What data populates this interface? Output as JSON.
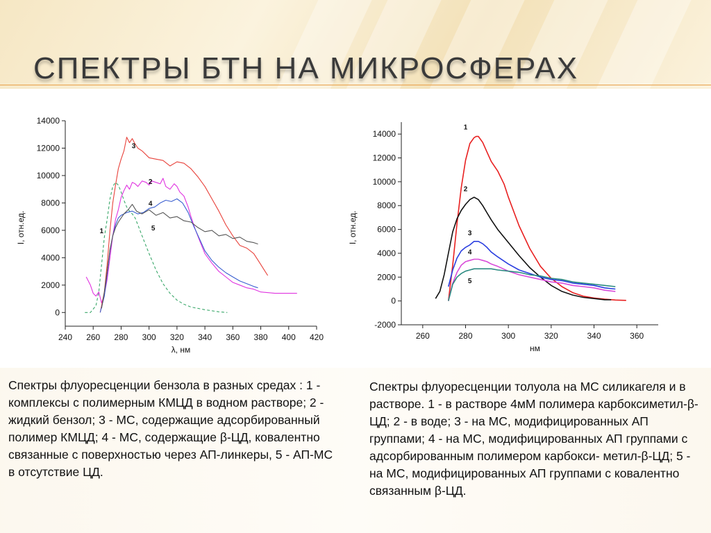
{
  "slide": {
    "title": "СПЕКТРЫ БТН НА МИКРОСФЕРАХ",
    "caption_left": "Спектры флуоресценции бензола в разных средах : 1 - комплексы с полимерным КМЦД в водном растворе; 2 - жидкий бензол; 3 - МС, содержащие адсорбированный полимер КМЦД; 4 - МС, содержащие β-ЦД, ковалентно связанные с поверхностью через АП-линкеры, 5 - АП-МС  в отсутствие ЦД.",
    "caption_right": "Спектры флуоресценции толуола на МС силикагеля и в растворе. 1 - в растворе 4мМ полимера карбоксиметил-β-ЦД; 2 - в воде; 3 - на МС, модифицированных АП группами; 4 - на МС, модифицированных АП группами с адсорбированным полимером карбокси- метил-β-ЦД; 5 - на МС, модифицированных АП группами с ковалентно связанным β-ЦД."
  },
  "chart_data": [
    {
      "type": "line",
      "xlabel": "λ, нм",
      "ylabel": "I, отн.ед.",
      "xlim": [
        240,
        420
      ],
      "ylim": [
        -1000,
        14000
      ],
      "xticks": [
        240,
        260,
        280,
        300,
        320,
        340,
        360,
        380,
        400,
        420
      ],
      "yticks": [
        0,
        2000,
        4000,
        6000,
        8000,
        10000,
        12000,
        14000
      ],
      "grid": false,
      "legend": "none",
      "series": [
        {
          "label": "1",
          "color": "#3aa86a",
          "dashed": true,
          "label_at": [
            266,
            5800
          ],
          "x": [
            254,
            258,
            262,
            264,
            266,
            268,
            270,
            272,
            274,
            276,
            278,
            280,
            282,
            284,
            286,
            288,
            290,
            292,
            295,
            300,
            305,
            310,
            315,
            320,
            325,
            330,
            340,
            350,
            356
          ],
          "y": [
            0,
            0,
            500,
            1500,
            3500,
            5500,
            6800,
            8300,
            9200,
            9500,
            9300,
            8800,
            8200,
            7700,
            7400,
            7200,
            6900,
            6400,
            5600,
            4300,
            3100,
            2100,
            1400,
            900,
            600,
            400,
            200,
            50,
            0
          ]
        },
        {
          "label": "2",
          "color": "#e033e0",
          "dashed": false,
          "label_at": [
            301,
            9400
          ],
          "x": [
            255,
            258,
            260,
            262,
            264,
            266,
            268,
            270,
            272,
            274,
            276,
            278,
            280,
            282,
            284,
            286,
            288,
            290,
            292,
            295,
            298,
            300,
            302,
            305,
            308,
            310,
            312,
            315,
            318,
            320,
            322,
            325,
            328,
            330,
            333,
            336,
            340,
            345,
            350,
            355,
            360,
            365,
            370,
            375,
            380,
            390,
            400,
            406
          ],
          "y": [
            2600,
            2000,
            1400,
            1200,
            1500,
            700,
            1300,
            2400,
            4000,
            5600,
            6800,
            7500,
            8400,
            8900,
            9300,
            9000,
            9500,
            9400,
            9200,
            9600,
            9500,
            9300,
            9600,
            9500,
            9400,
            9800,
            9200,
            9000,
            9400,
            9200,
            8800,
            8500,
            7700,
            7000,
            6100,
            5300,
            4300,
            3600,
            3000,
            2600,
            2200,
            2000,
            1800,
            1700,
            1500,
            1400,
            1400,
            1400
          ]
        },
        {
          "label": "3",
          "color": "#e8413a",
          "dashed": false,
          "label_at": [
            289,
            12000
          ],
          "x": [
            265,
            268,
            270,
            272,
            274,
            276,
            278,
            280,
            282,
            284,
            286,
            288,
            290,
            292,
            295,
            300,
            305,
            310,
            315,
            320,
            325,
            330,
            335,
            340,
            345,
            350,
            355,
            360,
            365,
            370,
            375,
            380,
            385
          ],
          "y": [
            0,
            1500,
            3500,
            6000,
            8000,
            9300,
            10500,
            11200,
            11800,
            12800,
            12400,
            12700,
            12300,
            12000,
            11800,
            11300,
            11200,
            11100,
            10700,
            11000,
            10900,
            10500,
            9900,
            9200,
            8300,
            7400,
            6400,
            5600,
            4900,
            4700,
            4300,
            3500,
            2700
          ]
        },
        {
          "label": "4",
          "color": "#3a5fd0",
          "dashed": false,
          "label_at": [
            301,
            7800
          ],
          "x": [
            265,
            268,
            270,
            272,
            274,
            276,
            278,
            280,
            284,
            288,
            292,
            296,
            300,
            304,
            308,
            312,
            316,
            320,
            324,
            328,
            332,
            336,
            340,
            345,
            350,
            355,
            360,
            365,
            370,
            375,
            378
          ],
          "y": [
            0,
            1200,
            2800,
            4500,
            5600,
            6400,
            6900,
            7100,
            7300,
            7400,
            7200,
            7300,
            7600,
            7700,
            8000,
            8200,
            8100,
            8300,
            8000,
            7300,
            6300,
            5400,
            4500,
            3800,
            3300,
            2900,
            2600,
            2300,
            2100,
            1900,
            1800
          ]
        },
        {
          "label": "5",
          "color": "#555555",
          "dashed": false,
          "label_at": [
            303,
            6000
          ],
          "x": [
            266,
            268,
            270,
            272,
            274,
            276,
            278,
            280,
            282,
            285,
            288,
            291,
            295,
            300,
            305,
            310,
            315,
            320,
            325,
            330,
            335,
            340,
            345,
            350,
            355,
            360,
            365,
            370,
            375,
            378
          ],
          "y": [
            300,
            1500,
            3000,
            4600,
            5600,
            6200,
            6600,
            6900,
            7200,
            7500,
            7900,
            7400,
            7200,
            7500,
            7100,
            7300,
            6900,
            7000,
            6700,
            6600,
            6200,
            5900,
            6000,
            5600,
            5700,
            5400,
            5500,
            5200,
            5100,
            5000
          ]
        }
      ]
    },
    {
      "type": "line",
      "xlabel": "нм",
      "ylabel": "I, отн.ед.",
      "xlim": [
        250,
        370
      ],
      "ylim": [
        -2000,
        15000
      ],
      "xticks": [
        260,
        280,
        300,
        320,
        340,
        360
      ],
      "yticks": [
        -2000,
        0,
        2000,
        4000,
        6000,
        8000,
        10000,
        12000,
        14000
      ],
      "grid": false,
      "legend": "none",
      "series": [
        {
          "label": "1",
          "color": "#e82020",
          "dashed": false,
          "label_at": [
            280,
            14400
          ],
          "x": [
            272,
            274,
            276,
            278,
            280,
            282,
            284,
            285,
            286,
            288,
            290,
            292,
            295,
            298,
            300,
            305,
            310,
            315,
            320,
            325,
            330,
            335,
            340,
            345,
            350,
            355
          ],
          "y": [
            0,
            3000,
            6500,
            9500,
            11800,
            13200,
            13700,
            13800,
            13800,
            13300,
            12500,
            11700,
            10900,
            9800,
            8700,
            6300,
            4400,
            2900,
            1900,
            1200,
            700,
            400,
            250,
            150,
            80,
            50
          ]
        },
        {
          "label": "2",
          "color": "#111111",
          "dashed": false,
          "label_at": [
            280,
            9200
          ],
          "x": [
            266,
            268,
            270,
            272,
            274,
            276,
            278,
            280,
            282,
            284,
            286,
            288,
            290,
            292,
            295,
            300,
            305,
            310,
            315,
            320,
            325,
            330,
            335,
            340,
            345,
            348
          ],
          "y": [
            200,
            800,
            2200,
            4000,
            5800,
            6900,
            7600,
            8100,
            8500,
            8700,
            8500,
            8000,
            7400,
            6800,
            6000,
            4900,
            3800,
            2800,
            2000,
            1300,
            800,
            500,
            300,
            200,
            100,
            100
          ]
        },
        {
          "label": "3",
          "color": "#2b3fe0",
          "dashed": false,
          "label_at": [
            282,
            5500
          ],
          "x": [
            272,
            274,
            276,
            278,
            280,
            282,
            284,
            286,
            288,
            290,
            292,
            295,
            300,
            305,
            310,
            315,
            320,
            325,
            330,
            335,
            340,
            345,
            350
          ],
          "y": [
            1200,
            2600,
            3600,
            4200,
            4500,
            4700,
            5000,
            5000,
            4800,
            4500,
            4100,
            3700,
            3100,
            2600,
            2300,
            2000,
            1800,
            1700,
            1500,
            1400,
            1300,
            1100,
            1000
          ]
        },
        {
          "label": "4",
          "color": "#d94bd9",
          "dashed": false,
          "label_at": [
            282,
            3900
          ],
          "x": [
            272,
            274,
            276,
            278,
            280,
            282,
            284,
            286,
            288,
            290,
            292,
            295,
            300,
            305,
            310,
            315,
            320,
            325,
            330,
            335,
            340,
            345,
            350
          ],
          "y": [
            0,
            1500,
            2400,
            3000,
            3300,
            3400,
            3500,
            3500,
            3400,
            3300,
            3100,
            2900,
            2500,
            2200,
            2000,
            1800,
            1600,
            1500,
            1300,
            1200,
            1100,
            900,
            800
          ]
        },
        {
          "label": "5",
          "color": "#2a8a80",
          "dashed": false,
          "label_at": [
            282,
            1500
          ],
          "x": [
            272,
            274,
            276,
            278,
            280,
            282,
            284,
            286,
            288,
            290,
            292,
            295,
            300,
            305,
            310,
            315,
            320,
            325,
            330,
            335,
            340,
            345,
            350
          ],
          "y": [
            0,
            1400,
            2000,
            2300,
            2500,
            2600,
            2700,
            2700,
            2700,
            2700,
            2700,
            2600,
            2500,
            2400,
            2200,
            2100,
            1900,
            1800,
            1600,
            1500,
            1400,
            1300,
            1200
          ]
        }
      ]
    }
  ]
}
